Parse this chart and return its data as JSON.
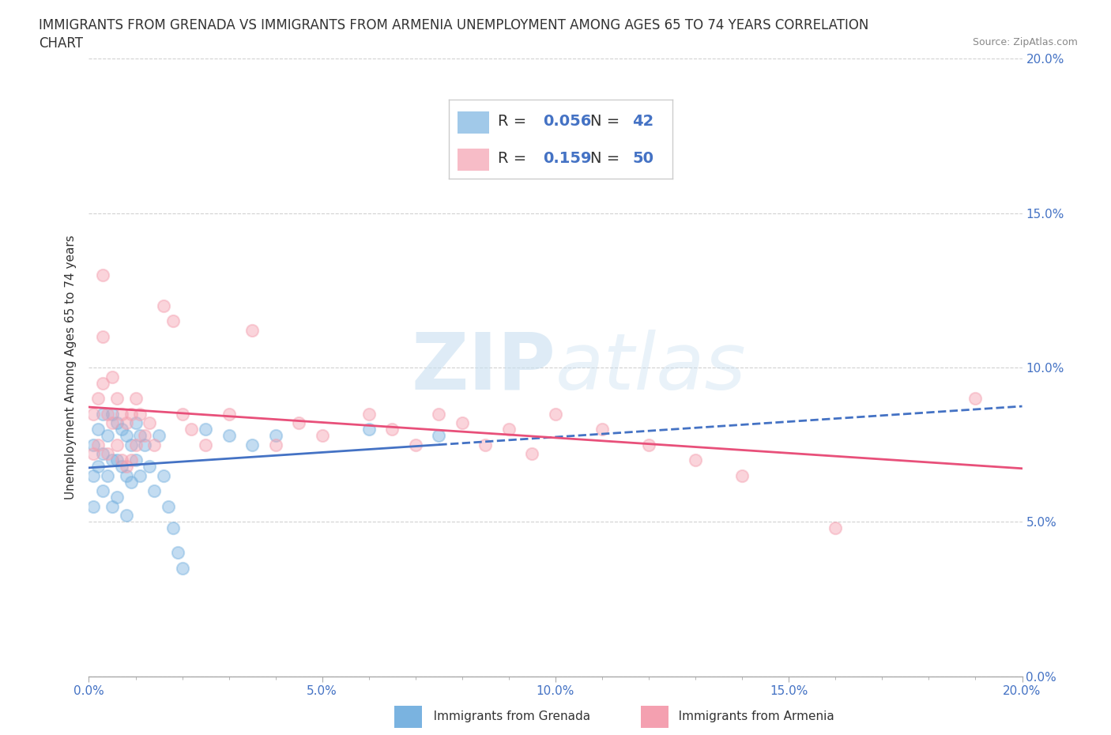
{
  "title_line1": "IMMIGRANTS FROM GRENADA VS IMMIGRANTS FROM ARMENIA UNEMPLOYMENT AMONG AGES 65 TO 74 YEARS CORRELATION",
  "title_line2": "CHART",
  "source": "Source: ZipAtlas.com",
  "ylabel": "Unemployment Among Ages 65 to 74 years",
  "xlim": [
    0.0,
    0.2
  ],
  "ylim": [
    0.0,
    0.2
  ],
  "xticks": [
    0.0,
    0.05,
    0.1,
    0.15,
    0.2
  ],
  "yticks": [
    0.0,
    0.05,
    0.1,
    0.15,
    0.2
  ],
  "xticklabels": [
    "0.0%",
    "5.0%",
    "10.0%",
    "15.0%",
    "20.0%"
  ],
  "yticklabels": [
    "0.0%",
    "5.0%",
    "10.0%",
    "15.0%",
    "20.0%"
  ],
  "grenada_color": "#7ab3e0",
  "armenia_color": "#f4a0b0",
  "grenada_line_color": "#4472c4",
  "armenia_line_color": "#e8507a",
  "tick_color": "#4472c4",
  "grenada_R": 0.056,
  "grenada_N": 42,
  "armenia_R": 0.159,
  "armenia_N": 50,
  "grenada_x": [
    0.001,
    0.001,
    0.001,
    0.002,
    0.002,
    0.003,
    0.003,
    0.003,
    0.004,
    0.004,
    0.005,
    0.005,
    0.005,
    0.006,
    0.006,
    0.006,
    0.007,
    0.007,
    0.008,
    0.008,
    0.008,
    0.009,
    0.009,
    0.01,
    0.01,
    0.011,
    0.011,
    0.012,
    0.013,
    0.014,
    0.015,
    0.016,
    0.017,
    0.018,
    0.019,
    0.02,
    0.025,
    0.03,
    0.035,
    0.04,
    0.06,
    0.075
  ],
  "grenada_y": [
    0.075,
    0.065,
    0.055,
    0.08,
    0.068,
    0.085,
    0.072,
    0.06,
    0.078,
    0.065,
    0.085,
    0.07,
    0.055,
    0.082,
    0.07,
    0.058,
    0.08,
    0.068,
    0.078,
    0.065,
    0.052,
    0.075,
    0.063,
    0.082,
    0.07,
    0.078,
    0.065,
    0.075,
    0.068,
    0.06,
    0.078,
    0.065,
    0.055,
    0.048,
    0.04,
    0.035,
    0.08,
    0.078,
    0.075,
    0.078,
    0.08,
    0.078
  ],
  "armenia_x": [
    0.001,
    0.001,
    0.002,
    0.002,
    0.003,
    0.003,
    0.003,
    0.004,
    0.004,
    0.005,
    0.005,
    0.006,
    0.006,
    0.007,
    0.007,
    0.008,
    0.008,
    0.009,
    0.009,
    0.01,
    0.01,
    0.011,
    0.012,
    0.013,
    0.014,
    0.016,
    0.018,
    0.02,
    0.022,
    0.025,
    0.03,
    0.035,
    0.04,
    0.045,
    0.05,
    0.06,
    0.065,
    0.07,
    0.075,
    0.08,
    0.085,
    0.09,
    0.095,
    0.1,
    0.11,
    0.12,
    0.13,
    0.14,
    0.16,
    0.19
  ],
  "armenia_y": [
    0.085,
    0.072,
    0.09,
    0.075,
    0.13,
    0.11,
    0.095,
    0.085,
    0.072,
    0.097,
    0.082,
    0.09,
    0.075,
    0.085,
    0.07,
    0.082,
    0.068,
    0.085,
    0.07,
    0.09,
    0.075,
    0.085,
    0.078,
    0.082,
    0.075,
    0.12,
    0.115,
    0.085,
    0.08,
    0.075,
    0.085,
    0.112,
    0.075,
    0.082,
    0.078,
    0.085,
    0.08,
    0.075,
    0.085,
    0.082,
    0.075,
    0.08,
    0.072,
    0.085,
    0.08,
    0.075,
    0.07,
    0.065,
    0.048,
    0.09
  ],
  "watermark_zip": "ZIP",
  "watermark_atlas": "atlas",
  "background_color": "#ffffff",
  "grid_color": "#cccccc",
  "title_fontsize": 12,
  "label_fontsize": 11,
  "tick_fontsize": 11,
  "legend_fontsize": 13,
  "scatter_size": 120,
  "scatter_alpha": 0.45,
  "scatter_linewidth": 1.5
}
